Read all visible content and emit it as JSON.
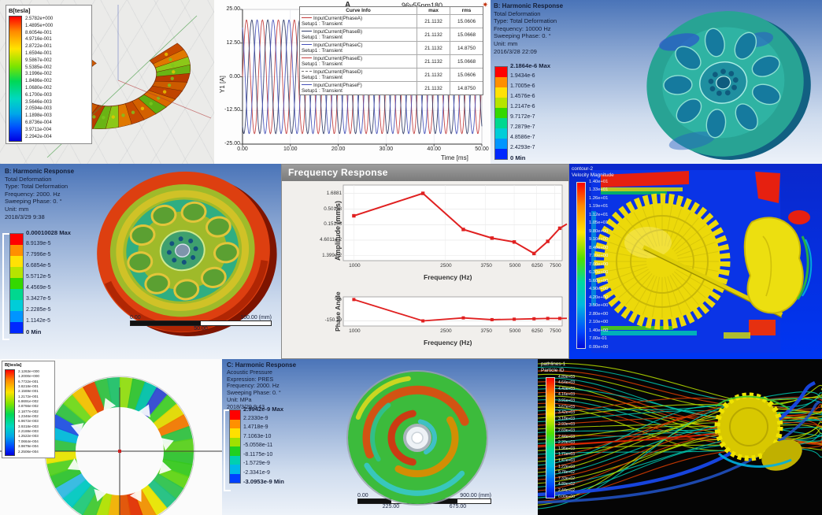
{
  "colors": {
    "ansys_bands_9": [
      "#ff0000",
      "#ff8f00",
      "#ffe105",
      "#b6e400",
      "#34d800",
      "#00d88f",
      "#00cdd8",
      "#0095ff",
      "#0028ff"
    ],
    "ansys_bands_8": [
      "#ff0000",
      "#ff9000",
      "#ffe000",
      "#a0e000",
      "#20d020",
      "#00d0b0",
      "#00b8e8",
      "#0040ff"
    ],
    "curve_red": "#c23b3b",
    "curve_navy": "#2e3a66",
    "curve_blue": "#4450b8",
    "freq_line": "#e02020"
  },
  "maxwell_torus": {
    "legend_title": "B[tesla]",
    "legend_values": [
      "2.5782e+000",
      "1.4895e+000",
      "8.6054e-001",
      "4.9716e-001",
      "2.8722e-001",
      "1.6594e-001",
      "9.5867e-002",
      "5.5385e-002",
      "3.1996e-002",
      "1.8486e-002",
      "1.0680e-002",
      "6.1700e-003",
      "3.5646e-003",
      "2.0594e-003",
      "1.1898e-003",
      "6.8736e-004",
      "3.9711e-004",
      "2.2942e-004"
    ]
  },
  "current_plot": {
    "corner_label": "A",
    "title": "96v55nm180",
    "app_icon": "✷",
    "ylabel": "Y1 [A]",
    "xlabel": "Time [ms]",
    "y_ticks": [
      "25.00",
      "12.50",
      "0.00",
      "-12.50",
      "-25.00"
    ],
    "x_ticks": [
      "0.00",
      "10.00",
      "20.00",
      "30.00",
      "40.00",
      "50.00"
    ],
    "legend_headers": [
      "Curve Info",
      "max",
      "rms"
    ],
    "legend_rows": [
      {
        "name": "InputCurrent(PhaseA)",
        "setup": "Setup1 : Transient",
        "max": "21.1132",
        "rms": "15.0606",
        "color": "#c23b3b",
        "dash": false
      },
      {
        "name": "InputCurrent(PhaseB)",
        "setup": "Setup1 : Transient",
        "max": "21.1132",
        "rms": "15.0668",
        "color": "#2e3a66",
        "dash": false
      },
      {
        "name": "InputCurrent(PhaseC)",
        "setup": "Setup1 : Transient",
        "max": "21.1132",
        "rms": "14.8750",
        "color": "#4450b8",
        "dash": false
      },
      {
        "name": "InputCurrent(PhaseE)",
        "setup": "Setup1 : Transient",
        "max": "21.1132",
        "rms": "15.0668",
        "color": "#c23b3b",
        "dash": false
      },
      {
        "name": "InputCurrent(PhaseD)",
        "setup": "Setup1 : Transient",
        "max": "21.1132",
        "rms": "15.0606",
        "color": "#707070",
        "dash": true
      },
      {
        "name": "InputCurrent(PhaseF)",
        "setup": "Setup1 : Transient",
        "max": "21.1132",
        "rms": "14.8750",
        "color": "#4450b8",
        "dash": false
      }
    ]
  },
  "harmonic_top": {
    "title_lines": [
      "B: Harmonic Response",
      "Total Deformation",
      "Type: Total Deformation",
      "Frequency: 10000 Hz",
      "Sweeping Phase: 0. °",
      "Unit: mm",
      "2016/3/28 22:09"
    ],
    "legend_values": [
      "2.1864e-6 Max",
      "1.9434e-6",
      "1.7005e-6",
      "1.4576e-6",
      "1.2147e-6",
      "9.7172e-7",
      "7.2879e-7",
      "4.8586e-7",
      "2.4293e-7",
      "0 Min"
    ]
  },
  "harmonic_left": {
    "title_lines": [
      "B: Harmonic Response",
      "Total Deformation",
      "Type: Total Deformation",
      "Frequency: 2000. Hz",
      "Sweeping Phase: 0. °",
      "Unit: mm",
      "2018/3/29 9:38"
    ],
    "legend_values": [
      "0.00010028 Max",
      "8.9139e-5",
      "7.7996e-5",
      "6.6854e-5",
      "5.5712e-5",
      "4.4569e-5",
      "3.3427e-5",
      "2.2285e-5",
      "1.1142e-5",
      "0 Min"
    ],
    "ruler": {
      "top_left": "0.00",
      "top_right": "100.00 (mm)",
      "bottom_center": "50.00"
    }
  },
  "freq_response": {
    "window_title": "Frequency Response",
    "amplitude": {
      "ylabel": "Amplitude (mm/s)",
      "y_ticks": [
        "1.6881",
        "0.50198",
        "0.15138",
        "4.6011e-2",
        "1.399e-2"
      ],
      "x_ticks": [
        "1000",
        "2500",
        "3750",
        "5000",
        "6250",
        "7500"
      ],
      "xlabel": "Frequency (Hz)"
    },
    "phase": {
      "ylabel": "Phase Angle",
      "y_ticks": [
        "90.",
        "-150.29"
      ],
      "x_ticks": [
        "1000",
        "2500",
        "3750",
        "5000",
        "6250",
        "7500"
      ],
      "xlabel": "Frequency (Hz)"
    }
  },
  "cfd_velocity": {
    "legend_header": [
      "contour-2",
      "Velocity Magnitude"
    ],
    "legend_values": [
      "1.40e+01",
      "1.33e+01",
      "1.26e+01",
      "1.19e+01",
      "1.12e+01",
      "1.05e+01",
      "9.80e+00",
      "9.10e+00",
      "8.40e+00",
      "7.70e+00",
      "7.00e+00",
      "6.30e+00",
      "5.60e+00",
      "4.90e+00",
      "4.20e+00",
      "3.50e+00",
      "2.80e+00",
      "2.10e+00",
      "1.40e+00",
      "7.00e-01",
      "0.00e+00"
    ]
  },
  "maxwell_stator": {
    "legend_title": "B[tesla]",
    "legend_values": [
      "2.1263e+000",
      "1.2000e+000",
      "6.7722e-001",
      "3.8218e-001",
      "2.1569e-001",
      "1.2172e-001",
      "6.8691e-002",
      "3.8766e-002",
      "2.1877e-002",
      "1.2346e-002",
      "6.9672e-003",
      "3.9318e-003",
      "2.2188e-003",
      "1.2522e-003",
      "7.0664e-004",
      "3.9879e-004",
      "2.2506e-004"
    ]
  },
  "harmonic_acoustic": {
    "title_lines": [
      "C: Harmonic Response",
      "Acoustic Pressure",
      "Expression: PRES",
      "Frequency: 2000. Hz",
      "Sweeping Phase: 0. °",
      "Unit: MPa",
      "2018/3/29 9:43"
    ],
    "legend_values": [
      "2.9942e-9 Max",
      "2.2330e-9",
      "1.4718e-9",
      "7.1063e-10",
      "-5.0558e-11",
      "-8.1175e-10",
      "-1.5729e-9",
      "-2.3341e-9",
      "-3.0953e-9 Min"
    ],
    "ruler": {
      "top": [
        "0.00",
        "450.00",
        "900.00 (mm)"
      ],
      "bottom": [
        "225.00",
        "675.00"
      ]
    }
  },
  "streamlines": {
    "legend_header": [
      "pathlines-1",
      "Particle ID"
    ],
    "legend_values": [
      "4.89e+03",
      "4.64e+03",
      "4.40e+03",
      "4.16e+03",
      "3.91e+03",
      "3.67e+03",
      "3.42e+03",
      "3.18e+03",
      "2.93e+03",
      "2.69e+03",
      "2.44e+03",
      "2.20e+03",
      "1.96e+03",
      "1.71e+03",
      "1.47e+03",
      "1.22e+03",
      "9.78e+02",
      "7.33e+02",
      "4.89e+02",
      "2.44e+02",
      "0.00e+00"
    ]
  },
  "chart_data": [
    {
      "type": "line",
      "title": "96v55nm180",
      "xlabel": "Time [ms]",
      "ylabel": "Y1 [A]",
      "xlim": [
        0,
        50
      ],
      "ylim": [
        -25,
        25
      ],
      "x_ticks": [
        0,
        10,
        20,
        30,
        40,
        50
      ],
      "y_ticks": [
        25,
        12.5,
        0,
        -12.5,
        -25
      ],
      "series": [
        {
          "name": "InputCurrent(PhaseA)",
          "color": "#c23b3b",
          "amplitude": 21.1132,
          "period_ms": 3.333,
          "phase_deg": 0
        },
        {
          "name": "InputCurrent(PhaseB)",
          "color": "#2e3a66",
          "amplitude": 21.1132,
          "period_ms": 3.333,
          "phase_deg": -120
        },
        {
          "name": "InputCurrent(PhaseC)",
          "color": "#4450b8",
          "amplitude": 21.1132,
          "period_ms": 3.333,
          "phase_deg": 120
        }
      ]
    },
    {
      "type": "line",
      "title": "Frequency Response",
      "xscale": "log",
      "subplots": [
        {
          "ylabel": "Amplitude (mm/s)",
          "yscale": "log",
          "xlabel": "Frequency (Hz)",
          "x": [
            1000,
            2000,
            3000,
            4000,
            5000,
            6100,
            7000,
            7900
          ],
          "y": [
            0.3,
            1.6881,
            0.105,
            0.054,
            0.04,
            0.0165,
            0.042,
            0.115
          ]
        },
        {
          "ylabel": "Phase Angle",
          "xlabel": "Frequency (Hz)",
          "x": [
            1000,
            2000,
            3000,
            4000,
            5000,
            6100,
            7000,
            7900
          ],
          "y": [
            90,
            -152,
            -118,
            -138,
            -133,
            -128,
            -124,
            -124
          ]
        }
      ]
    }
  ]
}
